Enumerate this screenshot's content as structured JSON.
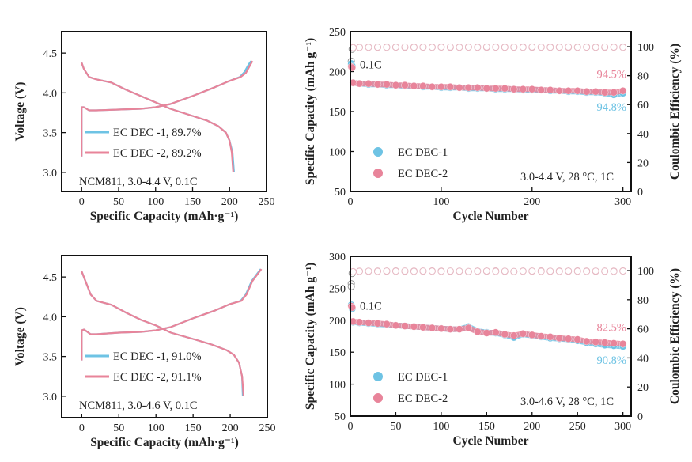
{
  "chart_data": [
    {
      "type": "line",
      "xlabel": "Specific Capacity (mAh·g⁻¹)",
      "ylabel": "Voltage (V)",
      "xlim": [
        -27,
        250
      ],
      "ylim": [
        2.76,
        4.77
      ],
      "xticks": [
        0,
        50,
        100,
        150,
        200,
        250
      ],
      "yticks": [
        3.0,
        3.5,
        4.0,
        4.5
      ],
      "annotation": "NCM811, 3.0-4.4 V, 0.1C",
      "series": [
        {
          "name": "EC DEC -1, 89.7%",
          "color": "#6ec3e4",
          "charge": [
            [
              0,
              3.2
            ],
            [
              0,
              3.82
            ],
            [
              3,
              3.82
            ],
            [
              10,
              3.78
            ],
            [
              20,
              3.78
            ],
            [
              50,
              3.79
            ],
            [
              80,
              3.8
            ],
            [
              100,
              3.82
            ],
            [
              120,
              3.86
            ],
            [
              150,
              3.96
            ],
            [
              180,
              4.07
            ],
            [
              200,
              4.15
            ],
            [
              214,
              4.2
            ],
            [
              220,
              4.26
            ],
            [
              226,
              4.36
            ],
            [
              229,
              4.4
            ]
          ],
          "discharge": [
            [
              0,
              4.38
            ],
            [
              3,
              4.3
            ],
            [
              10,
              4.2
            ],
            [
              20,
              4.17
            ],
            [
              40,
              4.13
            ],
            [
              60,
              4.04
            ],
            [
              80,
              3.96
            ],
            [
              100,
              3.88
            ],
            [
              120,
              3.8
            ],
            [
              150,
              3.71
            ],
            [
              170,
              3.65
            ],
            [
              185,
              3.58
            ],
            [
              195,
              3.5
            ],
            [
              200,
              3.4
            ],
            [
              204,
              3.25
            ],
            [
              206,
              3.0
            ]
          ]
        },
        {
          "name": "EC DEC -2, 89.2%",
          "color": "#e8849a",
          "charge": [
            [
              0,
              3.2
            ],
            [
              0,
              3.82
            ],
            [
              3,
              3.82
            ],
            [
              10,
              3.78
            ],
            [
              20,
              3.78
            ],
            [
              50,
              3.79
            ],
            [
              80,
              3.8
            ],
            [
              100,
              3.82
            ],
            [
              120,
              3.86
            ],
            [
              150,
              3.96
            ],
            [
              180,
              4.07
            ],
            [
              200,
              4.15
            ],
            [
              215,
              4.2
            ],
            [
              222,
              4.25
            ],
            [
              228,
              4.35
            ],
            [
              231,
              4.4
            ]
          ],
          "discharge": [
            [
              0,
              4.38
            ],
            [
              3,
              4.3
            ],
            [
              10,
              4.2
            ],
            [
              20,
              4.17
            ],
            [
              40,
              4.13
            ],
            [
              60,
              4.04
            ],
            [
              80,
              3.96
            ],
            [
              100,
              3.88
            ],
            [
              120,
              3.8
            ],
            [
              150,
              3.71
            ],
            [
              170,
              3.65
            ],
            [
              185,
              3.58
            ],
            [
              195,
              3.5
            ],
            [
              200,
              3.4
            ],
            [
              203,
              3.25
            ],
            [
              205,
              3.0
            ]
          ]
        }
      ]
    },
    {
      "type": "scatter",
      "xlabel": "Cycle Number",
      "ylabel": "Specific Capacity (mAh g⁻¹)",
      "y2label": "Coulombic Efficiency (%)",
      "xlim": [
        0,
        309
      ],
      "ylim": [
        50,
        250
      ],
      "y2lim": [
        0,
        110.4
      ],
      "xticks": [
        0,
        100,
        200,
        300
      ],
      "yticks": [
        50,
        100,
        150,
        200,
        250
      ],
      "y2ticks": [
        0,
        20,
        40,
        60,
        80,
        100
      ],
      "rate_label": "0.1C",
      "condition": "3.0-4.4 V, 28 °C, 1C",
      "cycles": [
        1,
        2,
        3,
        10,
        20,
        30,
        40,
        50,
        60,
        70,
        80,
        90,
        100,
        110,
        120,
        130,
        140,
        150,
        160,
        170,
        180,
        190,
        200,
        210,
        220,
        230,
        240,
        250,
        260,
        270,
        280,
        290,
        300
      ],
      "series": [
        {
          "name": "EC DEC-1",
          "color": "#6ec3e4",
          "retention": "94.8%",
          "capacity": [
            210,
            207,
            186,
            185,
            184,
            184,
            183,
            183,
            182,
            182,
            181,
            181,
            180,
            180,
            180,
            179,
            179,
            179,
            178,
            178,
            178,
            177,
            177,
            177,
            176,
            176,
            175,
            175,
            174,
            174,
            173,
            171,
            173
          ],
          "ce": [
            90,
            98.5,
            99.4,
            99.6,
            99.7,
            99.6,
            99.8,
            99.7,
            99.6,
            99.8,
            99.7,
            99.7,
            99.8,
            99.6,
            99.7,
            99.8,
            99.7,
            99.6,
            99.8,
            99.7,
            99.7,
            99.8,
            99.6,
            99.7,
            99.8,
            99.7,
            99.6,
            99.7,
            99.8,
            99.7,
            99.6,
            99.7,
            99.8
          ]
        },
        {
          "name": "EC DEC-2",
          "color": "#e8849a",
          "retention": "94.5%",
          "capacity": [
            206,
            205,
            186,
            185,
            185,
            184,
            184,
            183,
            183,
            182,
            182,
            181,
            181,
            181,
            180,
            180,
            180,
            179,
            179,
            179,
            178,
            178,
            178,
            177,
            177,
            176,
            176,
            176,
            175,
            175,
            174,
            174,
            176
          ],
          "ce": [
            88,
            98.2,
            99.3,
            99.5,
            99.6,
            99.7,
            99.6,
            99.7,
            99.8,
            99.6,
            99.7,
            99.6,
            99.7,
            99.8,
            99.6,
            99.7,
            99.6,
            99.8,
            99.7,
            99.6,
            99.7,
            99.6,
            99.8,
            99.7,
            99.6,
            99.7,
            99.8,
            99.6,
            99.7,
            99.6,
            99.8,
            99.7,
            99.6
          ]
        }
      ]
    },
    {
      "type": "line",
      "xlabel": "Specific Capacity (mAh·g⁻¹)",
      "ylabel": "Voltage (V)",
      "xlim": [
        -27,
        250
      ],
      "ylim": [
        2.73,
        4.77
      ],
      "xticks": [
        0,
        50,
        100,
        150,
        200,
        250
      ],
      "yticks": [
        3.0,
        3.5,
        4.0,
        4.5
      ],
      "annotation": "NCM811, 3.0-4.6 V, 0.1C",
      "series": [
        {
          "name": "EC DEC -1, 91.0%",
          "color": "#6ec3e4",
          "charge": [
            [
              0,
              3.45
            ],
            [
              0,
              3.83
            ],
            [
              3,
              3.84
            ],
            [
              12,
              3.78
            ],
            [
              20,
              3.78
            ],
            [
              50,
              3.8
            ],
            [
              80,
              3.81
            ],
            [
              100,
              3.83
            ],
            [
              120,
              3.87
            ],
            [
              150,
              3.98
            ],
            [
              180,
              4.08
            ],
            [
              200,
              4.16
            ],
            [
              214,
              4.2
            ],
            [
              221,
              4.28
            ],
            [
              229,
              4.45
            ],
            [
              241,
              4.6
            ]
          ],
          "discharge": [
            [
              0,
              4.57
            ],
            [
              5,
              4.45
            ],
            [
              12,
              4.28
            ],
            [
              20,
              4.2
            ],
            [
              40,
              4.15
            ],
            [
              60,
              4.05
            ],
            [
              80,
              3.96
            ],
            [
              100,
              3.89
            ],
            [
              120,
              3.8
            ],
            [
              150,
              3.72
            ],
            [
              175,
              3.65
            ],
            [
              195,
              3.58
            ],
            [
              205,
              3.52
            ],
            [
              212,
              3.42
            ],
            [
              216,
              3.25
            ],
            [
              217,
              3.0
            ]
          ]
        },
        {
          "name": "EC DEC -2, 91.1%",
          "color": "#e8849a",
          "charge": [
            [
              0,
              3.45
            ],
            [
              0,
              3.83
            ],
            [
              3,
              3.84
            ],
            [
              12,
              3.78
            ],
            [
              20,
              3.78
            ],
            [
              50,
              3.8
            ],
            [
              80,
              3.81
            ],
            [
              100,
              3.83
            ],
            [
              120,
              3.87
            ],
            [
              150,
              3.98
            ],
            [
              180,
              4.08
            ],
            [
              200,
              4.16
            ],
            [
              215,
              4.2
            ],
            [
              222,
              4.28
            ],
            [
              230,
              4.45
            ],
            [
              242,
              4.6
            ]
          ],
          "discharge": [
            [
              0,
              4.57
            ],
            [
              5,
              4.45
            ],
            [
              12,
              4.28
            ],
            [
              20,
              4.2
            ],
            [
              40,
              4.15
            ],
            [
              60,
              4.05
            ],
            [
              80,
              3.96
            ],
            [
              100,
              3.89
            ],
            [
              120,
              3.8
            ],
            [
              150,
              3.72
            ],
            [
              175,
              3.65
            ],
            [
              195,
              3.58
            ],
            [
              205,
              3.52
            ],
            [
              212,
              3.42
            ],
            [
              216,
              3.25
            ],
            [
              218,
              3.0
            ]
          ]
        }
      ]
    },
    {
      "type": "scatter",
      "xlabel": "Cycle Number",
      "ylabel": "Specific Capacity (mAh g⁻¹)",
      "y2label": "Coulombic Efficiency (%)",
      "xlim": [
        0,
        309
      ],
      "ylim": [
        50,
        300
      ],
      "y2lim": [
        0,
        109.8
      ],
      "xticks": [
        0,
        50,
        100,
        150,
        200,
        250,
        300
      ],
      "yticks": [
        50,
        100,
        150,
        200,
        250,
        300
      ],
      "y2ticks": [
        0,
        20,
        40,
        60,
        80,
        100
      ],
      "rate_label": "0.1C",
      "condition": "3.0-4.6 V, 28 °C, 1C",
      "cycles": [
        1,
        2,
        3,
        10,
        20,
        30,
        40,
        50,
        60,
        70,
        80,
        90,
        100,
        110,
        120,
        130,
        140,
        150,
        160,
        170,
        180,
        190,
        200,
        210,
        220,
        230,
        240,
        250,
        260,
        270,
        280,
        290,
        300
      ],
      "series": [
        {
          "name": "EC DEC-1",
          "color": "#6ec3e4",
          "retention": "90.8%",
          "capacity": [
            224,
            218,
            197,
            196,
            195,
            194,
            193,
            192,
            191,
            190,
            189,
            188,
            187,
            186,
            186,
            190,
            183,
            181,
            180,
            177,
            173,
            178,
            176,
            174,
            172,
            171,
            170,
            168,
            165,
            163,
            161,
            160,
            159
          ],
          "ce": [
            91,
            98.4,
            99.3,
            99.6,
            99.5,
            99.7,
            99.6,
            99.8,
            99.5,
            99.7,
            99.6,
            99.8,
            99.7,
            99.5,
            99.6,
            99.2,
            99.7,
            99.6,
            99.8,
            99.5,
            99.3,
            99.7,
            99.6,
            99.8,
            99.5,
            99.7,
            99.6,
            99.8,
            99.7,
            99.5,
            99.6,
            99.7,
            99.8
          ]
        },
        {
          "name": "EC DEC-2",
          "color": "#e8849a",
          "retention": "82.5%",
          "capacity": [
            222,
            220,
            198,
            197,
            196,
            195,
            194,
            192,
            191,
            190,
            189,
            188,
            187,
            186,
            186,
            188,
            182,
            180,
            181,
            178,
            176,
            179,
            177,
            175,
            174,
            172,
            171,
            170,
            167,
            166,
            165,
            164,
            163
          ],
          "ce": [
            89,
            98.0,
            99.2,
            99.5,
            99.6,
            99.5,
            99.7,
            99.6,
            99.7,
            99.5,
            99.7,
            99.6,
            99.5,
            99.7,
            99.6,
            99.4,
            99.6,
            99.7,
            99.5,
            99.6,
            99.4,
            99.6,
            99.7,
            99.5,
            99.6,
            99.5,
            99.7,
            99.6,
            99.5,
            99.7,
            99.6,
            99.5,
            99.7
          ]
        }
      ]
    }
  ]
}
